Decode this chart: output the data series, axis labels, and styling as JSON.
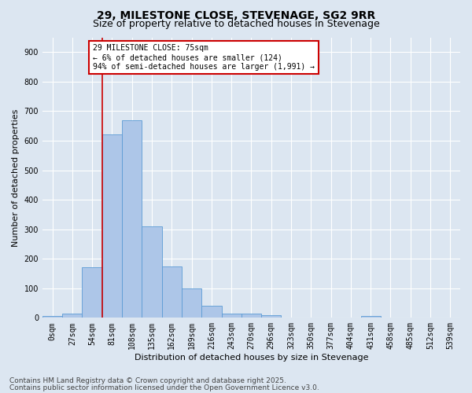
{
  "title1": "29, MILESTONE CLOSE, STEVENAGE, SG2 9RR",
  "title2": "Size of property relative to detached houses in Stevenage",
  "xlabel": "Distribution of detached houses by size in Stevenage",
  "ylabel": "Number of detached properties",
  "categories": [
    "0sqm",
    "27sqm",
    "54sqm",
    "81sqm",
    "108sqm",
    "135sqm",
    "162sqm",
    "189sqm",
    "216sqm",
    "243sqm",
    "270sqm",
    "296sqm",
    "323sqm",
    "350sqm",
    "377sqm",
    "404sqm",
    "431sqm",
    "458sqm",
    "485sqm",
    "512sqm",
    "539sqm"
  ],
  "values": [
    5,
    15,
    170,
    620,
    670,
    310,
    175,
    100,
    40,
    15,
    15,
    10,
    0,
    0,
    0,
    0,
    5,
    0,
    0,
    0,
    0
  ],
  "bar_color": "#adc6e8",
  "bar_edge_color": "#5b9bd5",
  "vline_color": "#cc0000",
  "ylim": [
    0,
    950
  ],
  "yticks": [
    0,
    100,
    200,
    300,
    400,
    500,
    600,
    700,
    800,
    900
  ],
  "annotation_text": "29 MILESTONE CLOSE: 75sqm\n← 6% of detached houses are smaller (124)\n94% of semi-detached houses are larger (1,991) →",
  "annotation_box_color": "#ffffff",
  "annotation_box_edge": "#cc0000",
  "background_color": "#dce6f1",
  "plot_bg_color": "#dce6f1",
  "footer1": "Contains HM Land Registry data © Crown copyright and database right 2025.",
  "footer2": "Contains public sector information licensed under the Open Government Licence v3.0.",
  "title_fontsize": 10,
  "subtitle_fontsize": 9,
  "xlabel_fontsize": 8,
  "ylabel_fontsize": 8,
  "tick_fontsize": 7,
  "footer_fontsize": 6.5,
  "ann_fontsize": 7
}
